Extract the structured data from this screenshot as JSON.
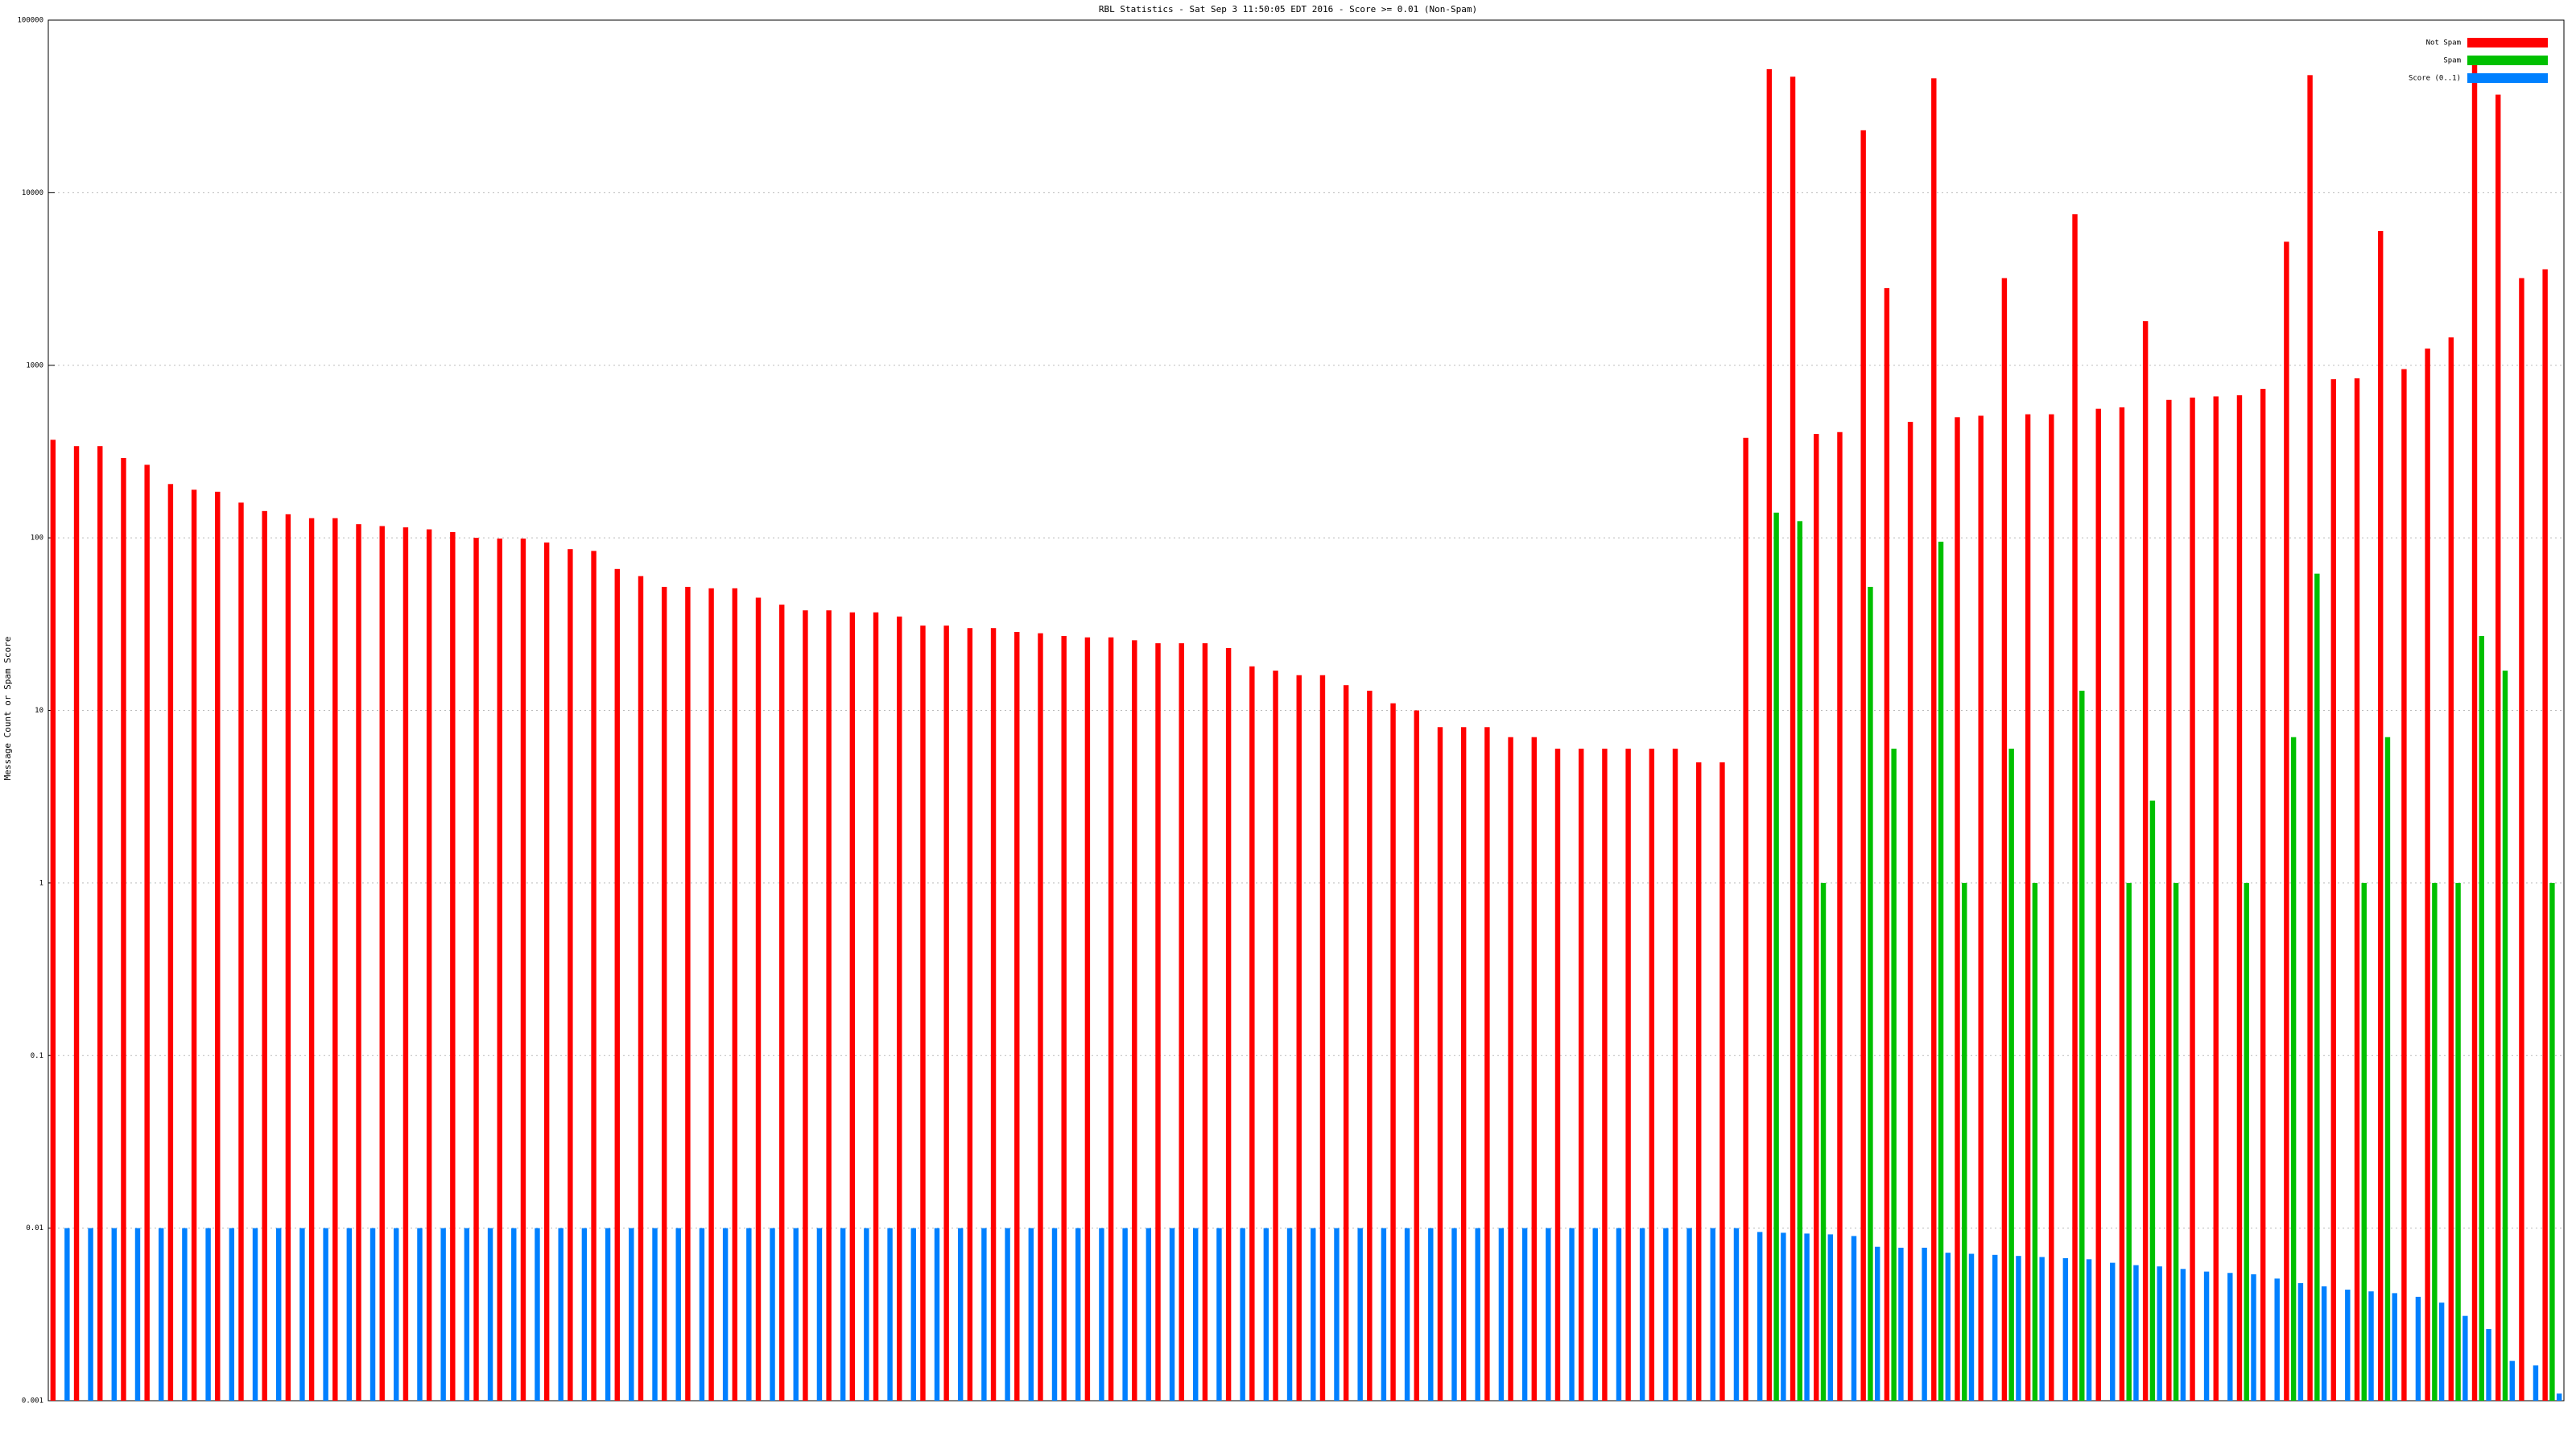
{
  "chart_data": {
    "type": "bar",
    "title": "RBL Statistics - Sat Sep  3 11:50:05 EDT 2016 - Score >= 0.01 (Non-Spam)",
    "y_label": "Message Count or Spam Score",
    "log_scale": true,
    "grid": true,
    "legend": "top-right",
    "ylim": [
      0.001,
      100000
    ],
    "yticks": [
      0.001,
      0.01,
      0.1,
      1,
      10,
      100,
      1000,
      10000,
      100000
    ],
    "categories": [
      null,
      null,
      null,
      null,
      null,
      null,
      null,
      null,
      null,
      null,
      null,
      null,
      null,
      null,
      null,
      null,
      null,
      null,
      null,
      null,
      null,
      null,
      null,
      null,
      null,
      null,
      null,
      null,
      null,
      null,
      null,
      null,
      null,
      null,
      null,
      null,
      null,
      null,
      null,
      null,
      null,
      null,
      null,
      null,
      null,
      null,
      null,
      null,
      null,
      null,
      null,
      null,
      null,
      null,
      null,
      null,
      null,
      null,
      null,
      null,
      null,
      null,
      null,
      null,
      null,
      null,
      null,
      null,
      null,
      null,
      null,
      null,
      null,
      null,
      null,
      null,
      null,
      null,
      null,
      null,
      null,
      null,
      null,
      null,
      null,
      null,
      null,
      null,
      null,
      null,
      null,
      null,
      null,
      null,
      null,
      null,
      null,
      null,
      null,
      null,
      null,
      null,
      null,
      null,
      null,
      null,
      null
    ],
    "series": [
      {
        "name": "Not Spam",
        "color": "#ff0000",
        "values": [
          370,
          340,
          340,
          290,
          265,
          205,
          190,
          185,
          160,
          143,
          137,
          130,
          130,
          120,
          117,
          115,
          112,
          108,
          100,
          99,
          99,
          94,
          86,
          84,
          66,
          60,
          52,
          52,
          51,
          51,
          45,
          41,
          38,
          38,
          37,
          37,
          35,
          31,
          31,
          30,
          30,
          28.5,
          28,
          27,
          26.5,
          26.5,
          25.5,
          24.5,
          24.5,
          24.5,
          23,
          18,
          17,
          16,
          16,
          14,
          13,
          11,
          10,
          8,
          8,
          8,
          7,
          7,
          6,
          6,
          6,
          6,
          6,
          6,
          5,
          5,
          380,
          52000,
          47000,
          400,
          410,
          23000,
          2800,
          470,
          46000,
          500,
          510,
          3200,
          520,
          520,
          7500,
          560,
          570,
          1800,
          630,
          650,
          660,
          670,
          730,
          5200,
          48000,
          830,
          840,
          6000,
          950,
          1250,
          1450,
          55000,
          37000,
          3200,
          3600
        ]
      },
      {
        "name": "Spam",
        "color": "#00c000",
        "values": [
          null,
          null,
          null,
          null,
          null,
          null,
          null,
          null,
          null,
          null,
          null,
          null,
          null,
          null,
          null,
          null,
          null,
          null,
          null,
          null,
          null,
          null,
          null,
          null,
          null,
          null,
          null,
          null,
          null,
          null,
          null,
          null,
          null,
          null,
          null,
          null,
          null,
          null,
          null,
          null,
          null,
          null,
          null,
          null,
          null,
          null,
          null,
          null,
          null,
          null,
          null,
          null,
          null,
          null,
          null,
          null,
          null,
          null,
          null,
          null,
          null,
          null,
          null,
          null,
          null,
          null,
          null,
          null,
          null,
          null,
          null,
          null,
          null,
          140,
          125,
          1,
          null,
          52,
          6,
          null,
          95,
          1,
          null,
          6,
          1,
          null,
          13,
          null,
          1,
          3,
          1,
          null,
          null,
          1,
          null,
          7,
          62,
          null,
          1,
          7,
          null,
          1,
          1,
          27,
          17,
          null,
          1
        ]
      },
      {
        "name": "Score (0..1)",
        "color": "#0080ff",
        "values": [
          0.01,
          0.01,
          0.01,
          0.01,
          0.01,
          0.01,
          0.01,
          0.01,
          0.01,
          0.01,
          0.01,
          0.01,
          0.01,
          0.01,
          0.01,
          0.01,
          0.01,
          0.01,
          0.01,
          0.01,
          0.01,
          0.01,
          0.01,
          0.01,
          0.01,
          0.01,
          0.01,
          0.01,
          0.01,
          0.01,
          0.01,
          0.01,
          0.01,
          0.01,
          0.01,
          0.01,
          0.01,
          0.01,
          0.01,
          0.01,
          0.01,
          0.01,
          0.01,
          0.01,
          0.01,
          0.01,
          0.01,
          0.01,
          0.01,
          0.01,
          0.01,
          0.01,
          0.01,
          0.01,
          0.01,
          0.01,
          0.01,
          0.01,
          0.01,
          0.01,
          0.01,
          0.01,
          0.01,
          0.01,
          0.01,
          0.01,
          0.01,
          0.01,
          0.01,
          0.01,
          0.01,
          0.01,
          0.0095,
          0.0094,
          0.0093,
          0.0092,
          0.009,
          0.0078,
          0.0077,
          0.0077,
          0.0072,
          0.0071,
          0.007,
          0.0069,
          0.0068,
          0.0067,
          0.0066,
          0.0063,
          0.0061,
          0.006,
          0.0058,
          0.0056,
          0.0055,
          0.0054,
          0.0051,
          0.0048,
          0.0046,
          0.0044,
          0.0043,
          0.0042,
          0.004,
          0.0037,
          0.0031,
          0.0026,
          0.0017,
          0.0016,
          0.0011
        ]
      }
    ]
  }
}
